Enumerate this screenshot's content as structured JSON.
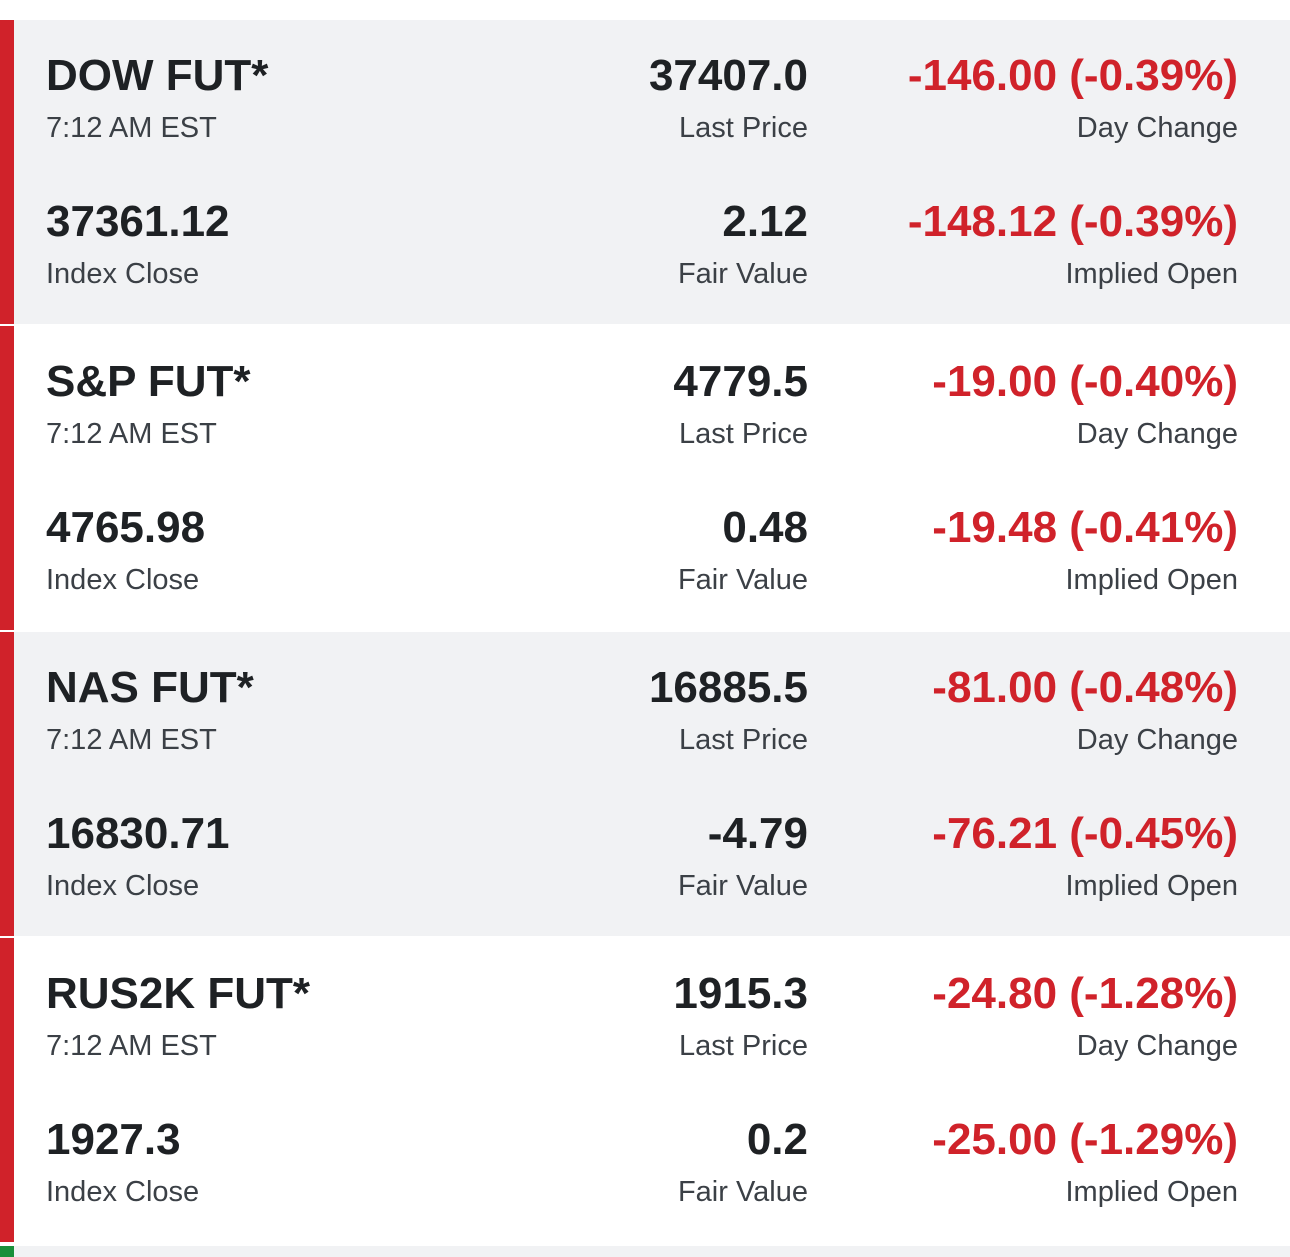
{
  "colors": {
    "negative": "#d0222a",
    "accent_bar": "#d0222a",
    "text_primary": "#1e2124",
    "text_secondary": "#3b4046",
    "card_shaded": "#f1f2f4",
    "next_accent": "#1a8f3a"
  },
  "futures": [
    {
      "name": "DOW FUT*",
      "time": "7:12 AM EST",
      "last_price": "37407.0",
      "last_price_label": "Last Price",
      "day_change": "-146.00 (-0.39%)",
      "day_change_label": "Day Change",
      "index_close": "37361.12",
      "index_close_label": "Index Close",
      "fair_value": "2.12",
      "fair_value_label": "Fair Value",
      "implied_open": "-148.12 (-0.39%)",
      "implied_open_label": "Implied Open"
    },
    {
      "name": "S&P FUT*",
      "time": "7:12 AM EST",
      "last_price": "4779.5",
      "last_price_label": "Last Price",
      "day_change": "-19.00 (-0.40%)",
      "day_change_label": "Day Change",
      "index_close": "4765.98",
      "index_close_label": "Index Close",
      "fair_value": "0.48",
      "fair_value_label": "Fair Value",
      "implied_open": "-19.48 (-0.41%)",
      "implied_open_label": "Implied Open"
    },
    {
      "name": "NAS FUT*",
      "time": "7:12 AM EST",
      "last_price": "16885.5",
      "last_price_label": "Last Price",
      "day_change": "-81.00 (-0.48%)",
      "day_change_label": "Day Change",
      "index_close": "16830.71",
      "index_close_label": "Index Close",
      "fair_value": "-4.79",
      "fair_value_label": "Fair Value",
      "implied_open": "-76.21 (-0.45%)",
      "implied_open_label": "Implied Open"
    },
    {
      "name": "RUS2K FUT*",
      "time": "7:12 AM EST",
      "last_price": "1915.3",
      "last_price_label": "Last Price",
      "day_change": "-24.80 (-1.28%)",
      "day_change_label": "Day Change",
      "index_close": "1927.3",
      "index_close_label": "Index Close",
      "fair_value": "0.2",
      "fair_value_label": "Fair Value",
      "implied_open": "-25.00 (-1.29%)",
      "implied_open_label": "Implied Open"
    }
  ]
}
